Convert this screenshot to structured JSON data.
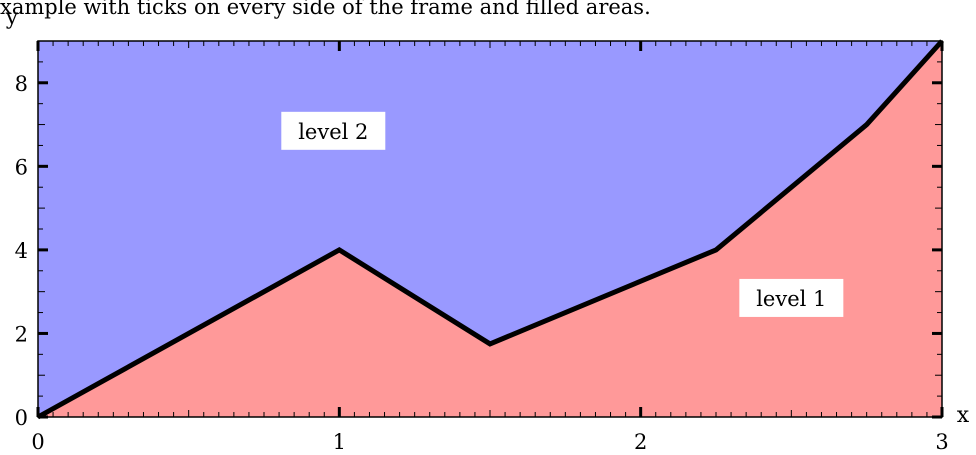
{
  "chart_data": {
    "type": "area",
    "title": "xample with ticks on every side of the frame and filled areas.",
    "xlabel": "x",
    "ylabel": "y",
    "xlim": [
      0,
      3
    ],
    "ylim": [
      0,
      9
    ],
    "x_ticks": [
      0,
      1,
      2,
      3
    ],
    "y_ticks": [
      0,
      2,
      4,
      6,
      8
    ],
    "grid": false,
    "boundary": {
      "x": [
        0,
        1,
        1.5,
        2.25,
        2.75,
        3
      ],
      "y": [
        0,
        4,
        1.75,
        4,
        7,
        9
      ]
    },
    "series": [
      {
        "name": "level 1",
        "fill": "#ff9999",
        "region": "below_boundary"
      },
      {
        "name": "level 2",
        "fill": "#9999ff",
        "region": "above_boundary"
      }
    ],
    "annotations": [
      {
        "text": "level 2",
        "x": 0.98,
        "y": 6.85
      },
      {
        "text": "level 1",
        "x": 2.5,
        "y": 2.85
      }
    ],
    "line_color": "#000000"
  }
}
